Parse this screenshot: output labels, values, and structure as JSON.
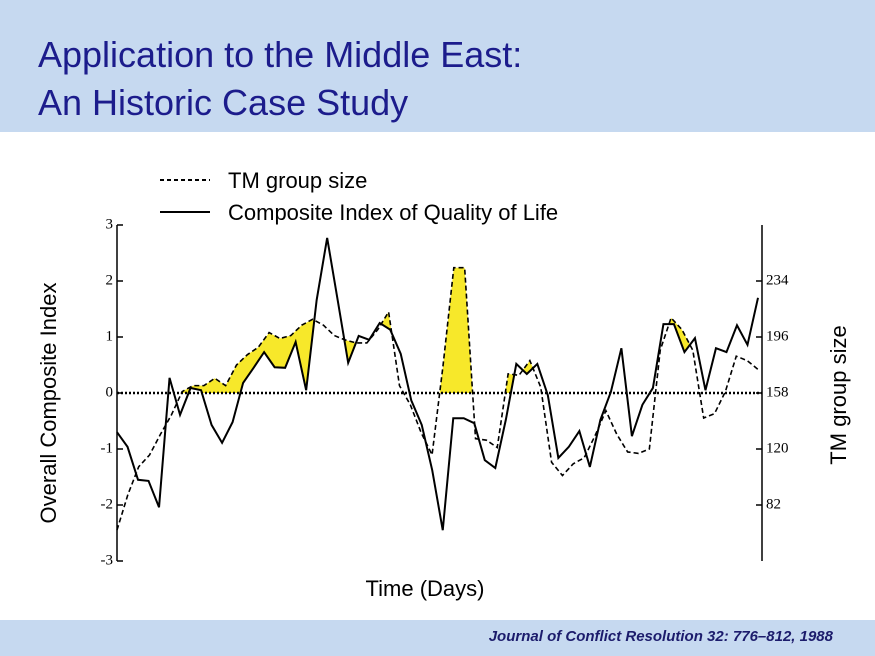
{
  "header": {
    "title": [
      "Application to the Middle East:",
      "An Historic Case Study"
    ]
  },
  "footer": "Journal of Conflict Resolution 32: 776–812, 1988",
  "chart_data": {
    "type": "line",
    "ylabel": "Overall Composite Index",
    "y2label": "TM group size",
    "xlabel": "Time (Days)",
    "ylim": [
      -3,
      3
    ],
    "yticks": [
      -3,
      -2,
      -1,
      0,
      1,
      2,
      3
    ],
    "y2lim": [
      44,
      272
    ],
    "y2ticks": [
      82,
      120,
      158,
      196,
      234
    ],
    "legend": "upper left",
    "series": [
      {
        "name": "TM group size",
        "color": "#000000",
        "axis": "y2",
        "style": "dashed",
        "values": [
          65,
          89,
          108,
          116,
          130,
          143,
          159,
          163,
          163,
          168,
          163,
          177,
          184,
          189,
          199,
          195,
          197,
          204,
          208,
          204,
          197,
          194,
          192,
          192,
          201,
          213,
          163,
          150,
          131,
          116,
          176,
          243,
          243,
          127,
          126,
          121,
          171,
          170,
          180,
          162,
          111,
          102,
          110,
          114,
          129,
          146,
          130,
          118,
          117,
          120,
          187,
          209,
          201,
          187,
          141,
          144,
          159,
          183,
          180,
          174
        ]
      },
      {
        "name": "Composite Index of Quality of Life",
        "color": "#000000",
        "style": "solid",
        "values": [
          -0.7,
          -0.96,
          -1.55,
          -1.57,
          -2.04,
          0.27,
          -0.39,
          0.09,
          0.05,
          -0.57,
          -0.89,
          -0.52,
          0.18,
          0.45,
          0.73,
          0.46,
          0.45,
          0.91,
          0.05,
          1.66,
          2.77,
          1.66,
          0.54,
          1.02,
          0.95,
          1.25,
          1.13,
          0.7,
          -0.13,
          -0.57,
          -1.38,
          -2.45,
          -0.45,
          -0.45,
          -0.54,
          -1.2,
          -1.34,
          -0.48,
          0.52,
          0.34,
          0.52,
          -0.04,
          -1.16,
          -0.96,
          -0.68,
          -1.32,
          -0.48,
          0.02,
          0.8,
          -0.77,
          -0.21,
          0.09,
          1.23,
          1.23,
          0.73,
          0.98,
          0.05,
          0.8,
          0.73,
          1.21,
          0.86,
          1.7
        ]
      }
    ]
  }
}
